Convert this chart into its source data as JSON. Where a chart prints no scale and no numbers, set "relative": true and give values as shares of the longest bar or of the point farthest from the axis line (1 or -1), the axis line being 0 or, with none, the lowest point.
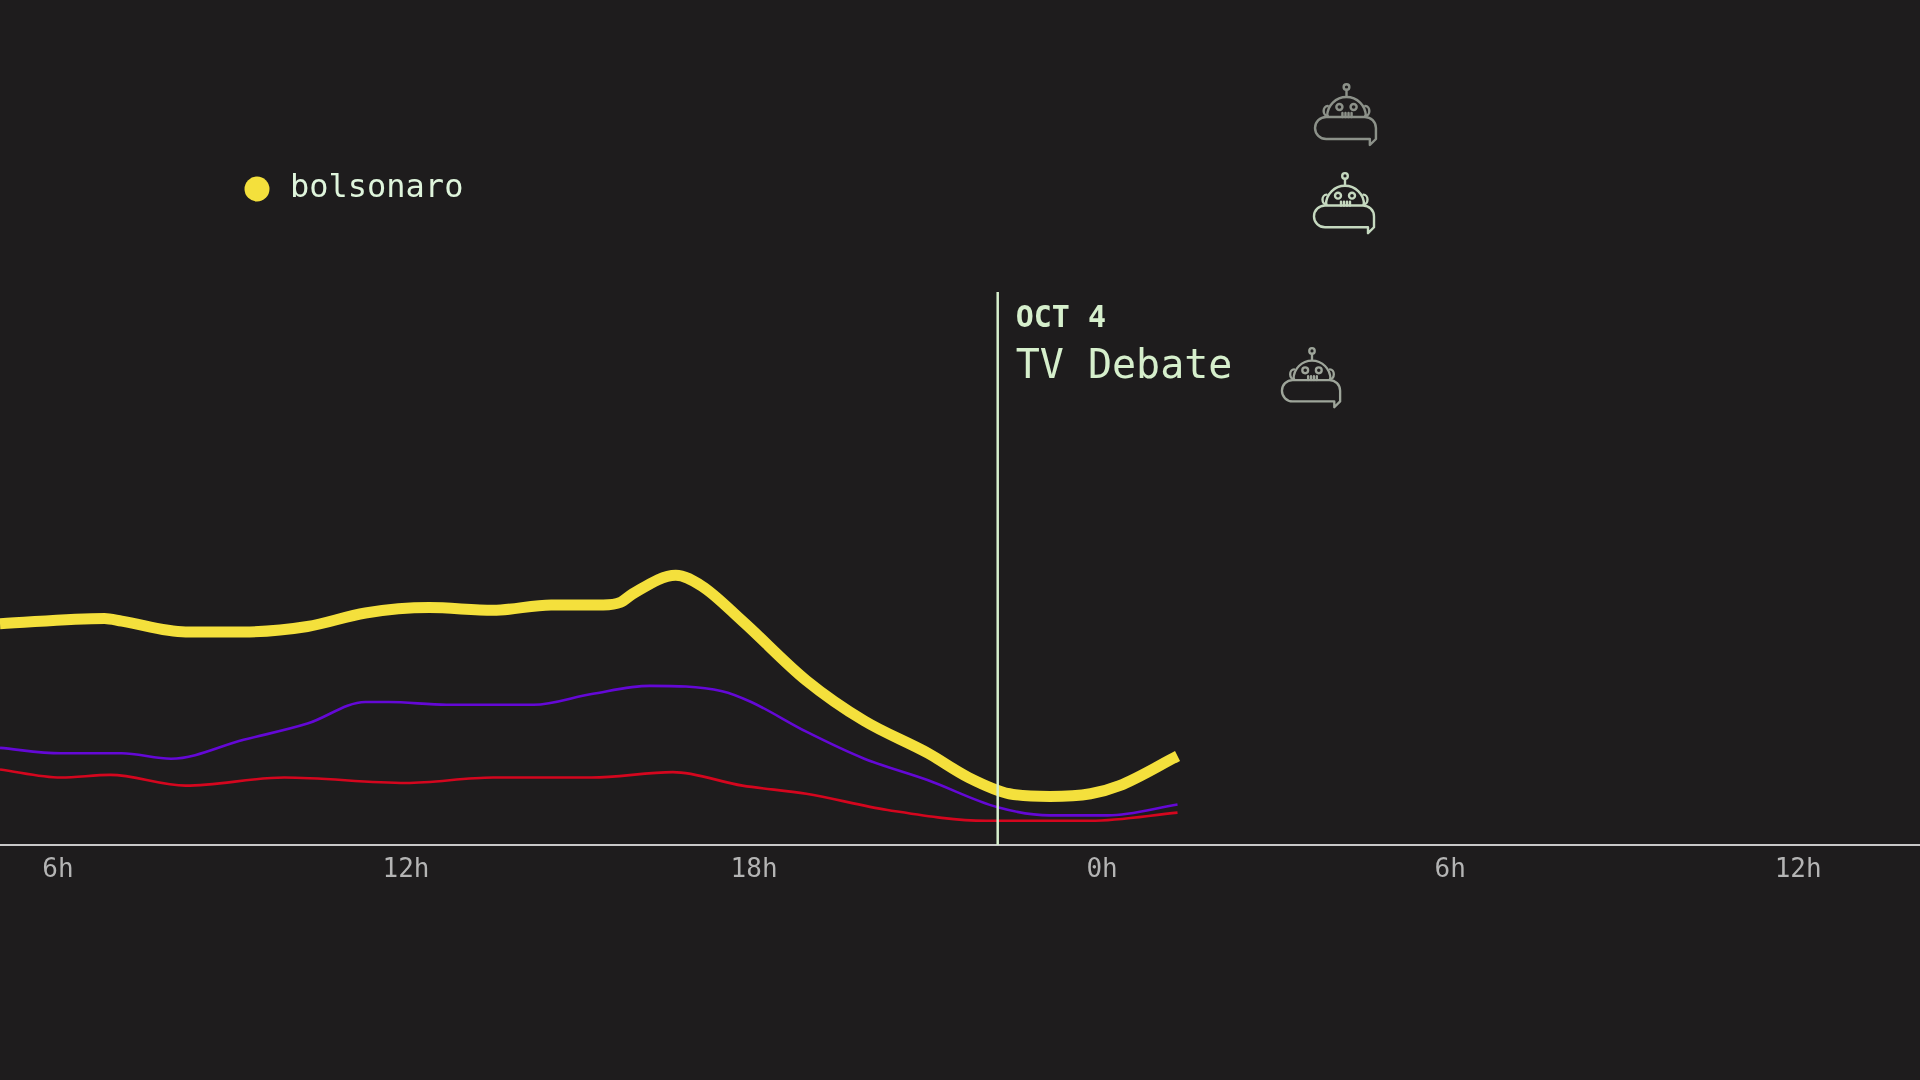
{
  "chart_data": {
    "type": "line",
    "relative": true,
    "xlim": [
      "--10-04T05:00",
      "--10-05T14:06"
    ],
    "xticks": [
      {
        "value": "--10-04T06:00",
        "label": "6h"
      },
      {
        "value": "--10-04T12:00",
        "label": "12h"
      },
      {
        "value": "--10-04T18:00",
        "label": "18h"
      },
      {
        "value": "--10-05T00:00",
        "label": "0h"
      },
      {
        "value": "--10-05T06:00",
        "label": "6h"
      },
      {
        "value": "--10-05T12:00",
        "label": "12h"
      }
    ],
    "series": [
      {
        "name": "bolsonaro",
        "color": "#f4e03c",
        "x": [
          "--10-04T05:00",
          "--10-04T06:48",
          "--10-04T07:06",
          "--10-04T08:12",
          "--10-04T09:12",
          "--10-04T10:18",
          "--10-04T11:18",
          "--10-04T12:24",
          "--10-04T13:30",
          "--10-04T14:30",
          "--10-04T15:24",
          "--10-04T15:42",
          "--10-04T15:54",
          "--10-04T16:39",
          "--10-04T17:06",
          "--10-04T17:48",
          "--10-04T18:54",
          "--10-04T19:54",
          "--10-04T21:00",
          "--10-04T21:42",
          "--10-04T22:24",
          "--10-04T23:06",
          "--10-04T23:48",
          "--10-05T00:18",
          "--10-05T01:18"
        ],
        "values": [
          0.82,
          0.84,
          0.83,
          0.79,
          0.79,
          0.81,
          0.86,
          0.88,
          0.87,
          0.89,
          0.89,
          0.9,
          0.93,
          1,
          0.96,
          0.83,
          0.61,
          0.46,
          0.34,
          0.25,
          0.19,
          0.18,
          0.19,
          0.22,
          0.33
        ]
      },
      {
        "color": "#6408d6",
        "x": [
          "--10-04T05:00",
          "--10-04T06:03",
          "--10-04T07:06",
          "--10-04T07:57",
          "--10-04T09:12",
          "--10-04T10:18",
          "--10-04T11:18",
          "--10-04T11:42",
          "--10-04T12:42",
          "--10-04T14:12",
          "--10-04T15:12",
          "--10-04T16:12",
          "--10-04T17:27",
          "--10-04T17:57",
          "--10-04T18:54",
          "--10-04T19:54",
          "--10-04T21:00",
          "--10-04T22:12",
          "--10-04T23:06",
          "--10-05T00:06",
          "--10-05T01:18"
        ],
        "values": [
          0.36,
          0.34,
          0.34,
          0.32,
          0.39,
          0.45,
          0.53,
          0.53,
          0.52,
          0.52,
          0.56,
          0.59,
          0.57,
          0.53,
          0.42,
          0.32,
          0.24,
          0.14,
          0.11,
          0.11,
          0.15
        ]
      },
      {
        "color": "#d4061e",
        "x": [
          "--10-04T05:00",
          "--10-04T06:03",
          "--10-04T06:54",
          "--10-04T08:12",
          "--10-04T09:54",
          "--10-04T12:00",
          "--10-04T13:30",
          "--10-04T15:12",
          "--10-04T16:36",
          "--10-04T17:48",
          "--10-04T18:54",
          "--10-04T20:18",
          "--10-04T22:00",
          "--10-04T23:48",
          "--10-05T01:18"
        ],
        "values": [
          0.28,
          0.25,
          0.26,
          0.22,
          0.25,
          0.23,
          0.25,
          0.25,
          0.27,
          0.22,
          0.19,
          0.13,
          0.09,
          0.09,
          0.12
        ]
      }
    ],
    "ref_lines": [
      {
        "axis": "x",
        "value": "--10-04T22:12",
        "label": "OCT 4\nTV Debate",
        "color": "#d6efcc"
      }
    ],
    "legend": "top left",
    "marker": "none"
  }
}
